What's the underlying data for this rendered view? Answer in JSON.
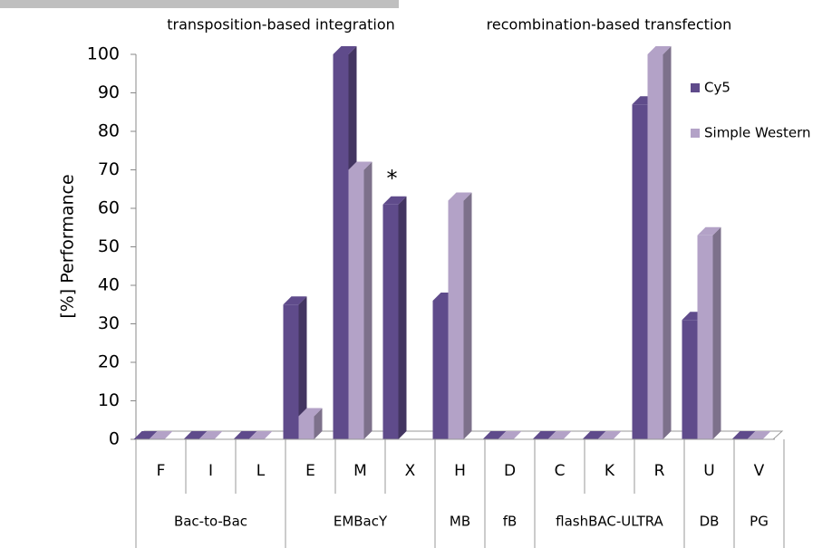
{
  "chart_data": {
    "type": "bar3d",
    "annotations": [
      "transposition-based integration",
      "recombination-based transfection",
      "*"
    ],
    "ylabel": "[%] Performance",
    "categories": [
      "F",
      "I",
      "L",
      "E",
      "M",
      "X",
      "H",
      "D",
      "C",
      "K",
      "R",
      "U",
      "V"
    ],
    "category_groups": [
      "Bac-to-Bac",
      "Bac-to-Bac",
      "Bac-to-Bac",
      "EMBacY",
      "EMBacY",
      "EMBacY",
      "MB",
      "fB",
      "flashBAC-ULTRA",
      "flashBAC-ULTRA",
      "flashBAC-ULTRA",
      "DB",
      "PG"
    ],
    "series": [
      {
        "name": "Cy5",
        "color": "#5f4b8b",
        "values": [
          0,
          0,
          0,
          35,
          100,
          61,
          36,
          0,
          0,
          0,
          87,
          31,
          0
        ]
      },
      {
        "name": "Simple Western",
        "color": "#b3a2c7",
        "values": [
          0,
          0,
          0,
          6,
          70,
          null,
          62,
          0,
          0,
          0,
          100,
          53,
          0
        ]
      }
    ],
    "ylim": [
      0,
      100
    ],
    "yticks": [
      0,
      10,
      20,
      30,
      40,
      50,
      60,
      70,
      80,
      90,
      100
    ],
    "grid": false
  }
}
